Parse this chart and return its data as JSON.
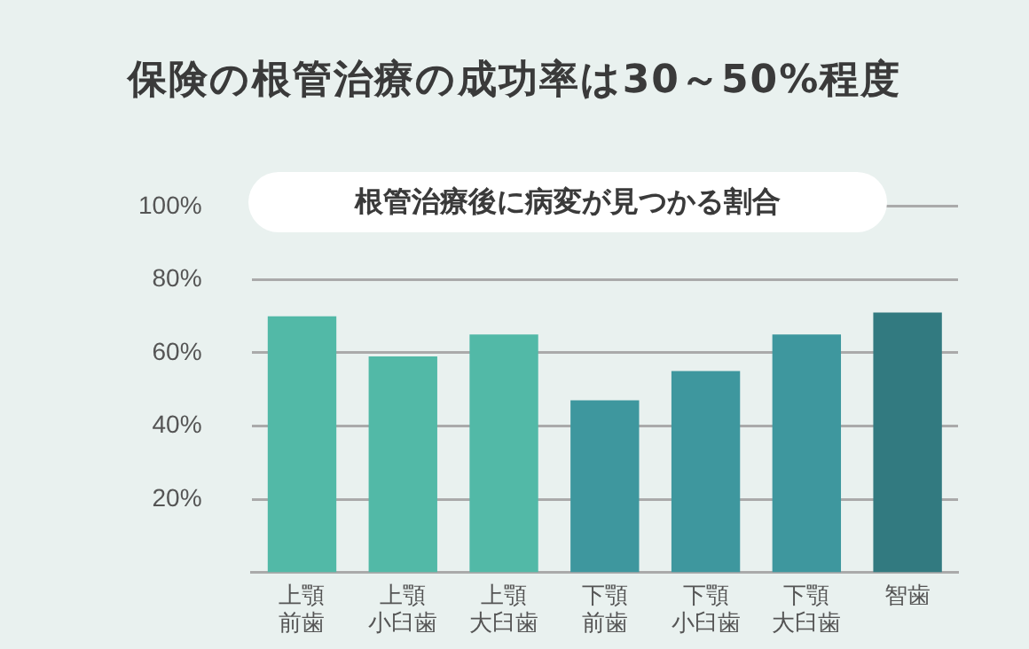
{
  "chart_data": {
    "type": "bar",
    "title": "保険の根管治療の成功率は30～50%程度",
    "subtitle": "根管治療後に病変が見つかる割合",
    "categories": [
      "上顎前歯",
      "上顎小臼歯",
      "上顎大臼歯",
      "下顎前歯",
      "下顎小臼歯",
      "下顎大臼歯",
      "智歯"
    ],
    "values": [
      70,
      59,
      65,
      47,
      55,
      65,
      71
    ],
    "colors": [
      "#52b9a7",
      "#52b9a7",
      "#52b9a7",
      "#3e979e",
      "#3e979e",
      "#3e979e",
      "#327a80"
    ],
    "ylim": [
      0,
      100
    ],
    "yticks": [
      {
        "value": 20,
        "label": "20%"
      },
      {
        "value": 40,
        "label": "40%"
      },
      {
        "value": 60,
        "label": "60%"
      },
      {
        "value": 80,
        "label": "80%"
      },
      {
        "value": 100,
        "label": "100%"
      }
    ],
    "grid": "y",
    "legend": false
  }
}
